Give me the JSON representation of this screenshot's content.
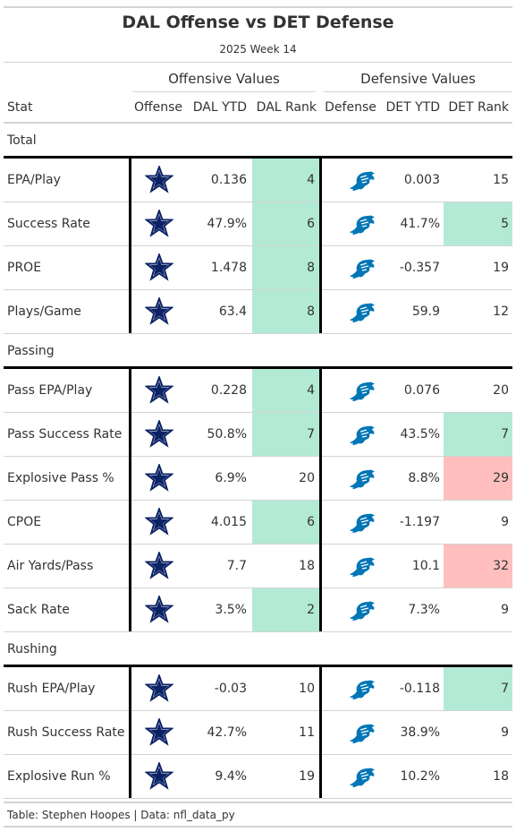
{
  "header": {
    "title": "DAL Offense vs DET Defense",
    "subtitle": "2025 Week 14",
    "spanner_offense": "Offensive Values",
    "spanner_defense": "Defensive Values"
  },
  "columns": [
    "Stat",
    "Offense",
    "DAL YTD",
    "DAL Rank",
    "Defense",
    "DET YTD",
    "DET Rank"
  ],
  "colors": {
    "good_rank": "#b3ead5",
    "bad_rank": "#ffbfbf",
    "cowboys_navy": "#0b2265",
    "lions_blue": "#0076b6"
  },
  "icons": {
    "offense_logo": "cowboys-star-icon",
    "defense_logo": "lions-logo-icon"
  },
  "sections": [
    {
      "name": "Total",
      "rows": [
        {
          "stat": "EPA/Play",
          "dal_ytd": "0.136",
          "dal_rank": "4",
          "dal_hl": "good",
          "det_ytd": "0.003",
          "det_rank": "15",
          "det_hl": ""
        },
        {
          "stat": "Success Rate",
          "dal_ytd": "47.9%",
          "dal_rank": "6",
          "dal_hl": "good",
          "det_ytd": "41.7%",
          "det_rank": "5",
          "det_hl": "good"
        },
        {
          "stat": "PROE",
          "dal_ytd": "1.478",
          "dal_rank": "8",
          "dal_hl": "good",
          "det_ytd": "-0.357",
          "det_rank": "19",
          "det_hl": ""
        },
        {
          "stat": "Plays/Game",
          "dal_ytd": "63.4",
          "dal_rank": "8",
          "dal_hl": "good",
          "det_ytd": "59.9",
          "det_rank": "12",
          "det_hl": ""
        }
      ]
    },
    {
      "name": "Passing",
      "rows": [
        {
          "stat": "Pass EPA/Play",
          "dal_ytd": "0.228",
          "dal_rank": "4",
          "dal_hl": "good",
          "det_ytd": "0.076",
          "det_rank": "20",
          "det_hl": ""
        },
        {
          "stat": "Pass Success Rate",
          "dal_ytd": "50.8%",
          "dal_rank": "7",
          "dal_hl": "good",
          "det_ytd": "43.5%",
          "det_rank": "7",
          "det_hl": "good"
        },
        {
          "stat": "Explosive Pass %",
          "dal_ytd": "6.9%",
          "dal_rank": "20",
          "dal_hl": "",
          "det_ytd": "8.8%",
          "det_rank": "29",
          "det_hl": "bad"
        },
        {
          "stat": "CPOE",
          "dal_ytd": "4.015",
          "dal_rank": "6",
          "dal_hl": "good",
          "det_ytd": "-1.197",
          "det_rank": "9",
          "det_hl": ""
        },
        {
          "stat": "Air Yards/Pass",
          "dal_ytd": "7.7",
          "dal_rank": "18",
          "dal_hl": "",
          "det_ytd": "10.1",
          "det_rank": "32",
          "det_hl": "bad"
        },
        {
          "stat": "Sack Rate",
          "dal_ytd": "3.5%",
          "dal_rank": "2",
          "dal_hl": "good",
          "det_ytd": "7.3%",
          "det_rank": "9",
          "det_hl": ""
        }
      ]
    },
    {
      "name": "Rushing",
      "rows": [
        {
          "stat": "Rush EPA/Play",
          "dal_ytd": "-0.03",
          "dal_rank": "10",
          "dal_hl": "",
          "det_ytd": "-0.118",
          "det_rank": "7",
          "det_hl": "good"
        },
        {
          "stat": "Rush Success Rate",
          "dal_ytd": "42.7%",
          "dal_rank": "11",
          "dal_hl": "",
          "det_ytd": "38.9%",
          "det_rank": "9",
          "det_hl": ""
        },
        {
          "stat": "Explosive Run %",
          "dal_ytd": "9.4%",
          "dal_rank": "19",
          "dal_hl": "",
          "det_ytd": "10.2%",
          "det_rank": "18",
          "det_hl": ""
        }
      ]
    }
  ],
  "footer": "Table: Stephen Hoopes | Data: nfl_data_py",
  "chart_data": {
    "type": "table",
    "title": "DAL Offense vs DET Defense",
    "subtitle": "2025 Week 14",
    "column_groups": [
      "Offensive Values",
      "Defensive Values"
    ],
    "columns": [
      "Stat",
      "Offense",
      "DAL YTD",
      "DAL Rank",
      "Defense",
      "DET YTD",
      "DET Rank"
    ],
    "row_groups": [
      "Total",
      "Passing",
      "Rushing"
    ],
    "source": "Table: Stephen Hoopes | Data: nfl_data_py"
  }
}
